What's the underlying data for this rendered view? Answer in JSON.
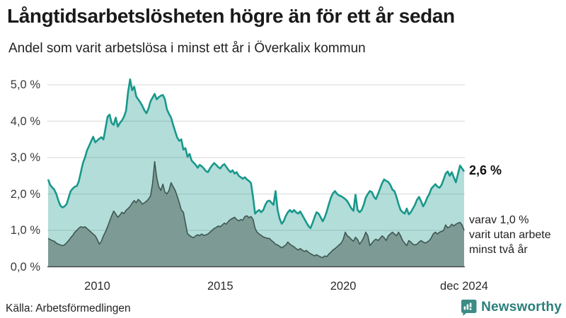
{
  "header": {
    "title": "Långtidsarbetslösheten högre än för ett år sedan",
    "subtitle": "Andel som varit arbetslösa i minst ett år i Överkalix kommun"
  },
  "colors": {
    "accent_teal": "#18988b",
    "light_fill": "rgba(24,152,139,0.33)",
    "dark_fill": "#7d9b94",
    "dark_stroke": "#3e5753",
    "gridline": "#dedede",
    "axis_line": "#4a4a4a",
    "brand_teal": "#2b7f7a"
  },
  "chart_data": {
    "type": "area",
    "title": "Långtidsarbetslösheten högre än för ett år sedan",
    "subtitle": "Andel som varit arbetslösa i minst ett år i Överkalix kommun",
    "x_unit": "month",
    "x_range": [
      "2008-01",
      "2024-12"
    ],
    "ylim": [
      0,
      5.4
    ],
    "grid": true,
    "y_ticks": [
      {
        "value": 0,
        "label": "0,0 %"
      },
      {
        "value": 1,
        "label": "1,0 %"
      },
      {
        "value": 2,
        "label": "2,0 %"
      },
      {
        "value": 3,
        "label": "3,0 %"
      },
      {
        "value": 4,
        "label": "4,0 %"
      },
      {
        "value": 5,
        "label": "5,0 %"
      }
    ],
    "x_ticks": [
      {
        "month_index": 24,
        "label": "2010"
      },
      {
        "month_index": 84,
        "label": "2015"
      },
      {
        "month_index": 144,
        "label": "2020"
      },
      {
        "month_index": 203,
        "label": "dec 2024"
      }
    ],
    "series": [
      {
        "name": "Andel som varit arbetslösa i minst ett år",
        "end_value": 2.6,
        "values": [
          2.4,
          2.25,
          2.18,
          2.12,
          2.0,
          1.82,
          1.68,
          1.63,
          1.66,
          1.72,
          1.9,
          2.08,
          2.15,
          2.2,
          2.22,
          2.35,
          2.6,
          2.85,
          3.0,
          3.2,
          3.32,
          3.45,
          3.57,
          3.42,
          3.47,
          3.52,
          3.56,
          3.5,
          3.8,
          4.12,
          4.18,
          3.95,
          3.9,
          4.1,
          3.85,
          3.95,
          4.02,
          4.12,
          4.28,
          4.8,
          5.15,
          4.85,
          4.95,
          4.68,
          4.6,
          4.52,
          4.42,
          4.3,
          4.22,
          4.35,
          4.55,
          4.65,
          4.75,
          4.6,
          4.66,
          4.7,
          4.72,
          4.6,
          4.32,
          4.2,
          4.1,
          3.9,
          3.72,
          3.55,
          3.46,
          3.5,
          3.22,
          3.26,
          3.02,
          3.1,
          2.92,
          2.86,
          2.8,
          2.72,
          2.8,
          2.76,
          2.7,
          2.63,
          2.6,
          2.7,
          2.78,
          2.85,
          2.8,
          2.74,
          2.7,
          2.78,
          2.82,
          2.74,
          2.66,
          2.6,
          2.65,
          2.56,
          2.6,
          2.5,
          2.46,
          2.42,
          2.46,
          2.4,
          2.36,
          2.3,
          1.9,
          1.46,
          1.52,
          1.56,
          1.5,
          1.56,
          1.7,
          1.8,
          1.82,
          1.76,
          1.7,
          2.08,
          1.56,
          1.32,
          1.18,
          1.26,
          1.4,
          1.5,
          1.56,
          1.5,
          1.56,
          1.5,
          1.46,
          1.52,
          1.42,
          1.32,
          1.22,
          1.12,
          1.06,
          1.2,
          1.36,
          1.5,
          1.46,
          1.36,
          1.25,
          1.36,
          1.52,
          1.72,
          1.9,
          2.02,
          2.08,
          2.0,
          1.96,
          1.94,
          1.9,
          1.86,
          1.8,
          1.7,
          1.6,
          1.54,
          1.98,
          1.56,
          1.5,
          1.56,
          1.7,
          1.9,
          2.0,
          2.08,
          2.05,
          1.92,
          1.86,
          2.0,
          2.15,
          2.3,
          2.4,
          2.36,
          2.33,
          2.25,
          2.12,
          2.08,
          1.92,
          1.72,
          1.56,
          1.5,
          1.46,
          1.6,
          1.44,
          1.5,
          1.6,
          1.7,
          1.84,
          1.92,
          1.8,
          1.66,
          1.76,
          1.9,
          2.0,
          2.15,
          2.21,
          2.27,
          2.2,
          2.17,
          2.25,
          2.4,
          2.56,
          2.62,
          2.5,
          2.6,
          2.45,
          2.32,
          2.55,
          2.78,
          2.7,
          2.62
        ]
      },
      {
        "name": "varav utan arbete minst två år",
        "end_value": 1.0,
        "values": [
          0.78,
          0.75,
          0.72,
          0.7,
          0.65,
          0.62,
          0.6,
          0.58,
          0.6,
          0.66,
          0.72,
          0.8,
          0.86,
          0.95,
          1.0,
          1.06,
          1.1,
          1.08,
          1.1,
          1.05,
          1.0,
          0.95,
          0.9,
          0.85,
          0.75,
          0.62,
          0.7,
          0.85,
          0.96,
          1.1,
          1.25,
          1.4,
          1.53,
          1.45,
          1.36,
          1.42,
          1.5,
          1.46,
          1.55,
          1.6,
          1.66,
          1.75,
          1.82,
          1.76,
          1.85,
          1.8,
          1.72,
          1.76,
          1.8,
          1.86,
          1.95,
          2.3,
          2.89,
          2.45,
          2.2,
          2.1,
          2.27,
          2.05,
          2.0,
          2.1,
          2.31,
          2.2,
          2.1,
          1.94,
          1.76,
          1.56,
          1.5,
          1.2,
          0.91,
          0.86,
          0.82,
          0.8,
          0.85,
          0.88,
          0.86,
          0.9,
          0.86,
          0.88,
          0.9,
          0.95,
          1.0,
          1.05,
          1.08,
          1.12,
          1.1,
          1.15,
          1.2,
          1.17,
          1.25,
          1.3,
          1.33,
          1.36,
          1.3,
          1.26,
          1.3,
          1.28,
          1.38,
          1.4,
          1.35,
          1.38,
          1.3,
          1.05,
          0.95,
          0.9,
          0.86,
          0.82,
          0.8,
          0.78,
          0.78,
          0.72,
          0.68,
          0.62,
          0.6,
          0.56,
          0.52,
          0.56,
          0.6,
          0.68,
          0.62,
          0.58,
          0.55,
          0.5,
          0.46,
          0.5,
          0.46,
          0.42,
          0.45,
          0.4,
          0.36,
          0.33,
          0.3,
          0.33,
          0.3,
          0.27,
          0.25,
          0.3,
          0.28,
          0.35,
          0.4,
          0.46,
          0.5,
          0.55,
          0.6,
          0.65,
          0.75,
          0.95,
          0.85,
          0.81,
          0.75,
          0.7,
          0.81,
          0.75,
          0.62,
          0.7,
          0.8,
          0.95,
          0.85,
          0.58,
          0.65,
          0.72,
          0.76,
          0.72,
          0.78,
          0.85,
          0.8,
          0.72,
          0.85,
          0.9,
          0.95,
          0.9,
          0.85,
          0.95,
          0.85,
          0.72,
          0.65,
          0.58,
          0.72,
          0.68,
          0.62,
          0.6,
          0.62,
          0.68,
          0.72,
          0.68,
          0.65,
          0.68,
          0.72,
          0.8,
          0.91,
          0.95,
          0.9,
          0.95,
          0.97,
          1.0,
          1.15,
          1.07,
          1.1,
          1.17,
          1.12,
          1.17,
          1.2,
          1.22,
          1.15,
          1.0
        ]
      }
    ],
    "annotations": {
      "end_value_label": "2,6 %",
      "sub_lines": [
        "varav 1,0 %",
        "varit utan arbete",
        "minst två år"
      ]
    }
  },
  "footer": {
    "source": "Källa: Arbetsförmedlingen",
    "brand": "Newsworthy"
  }
}
